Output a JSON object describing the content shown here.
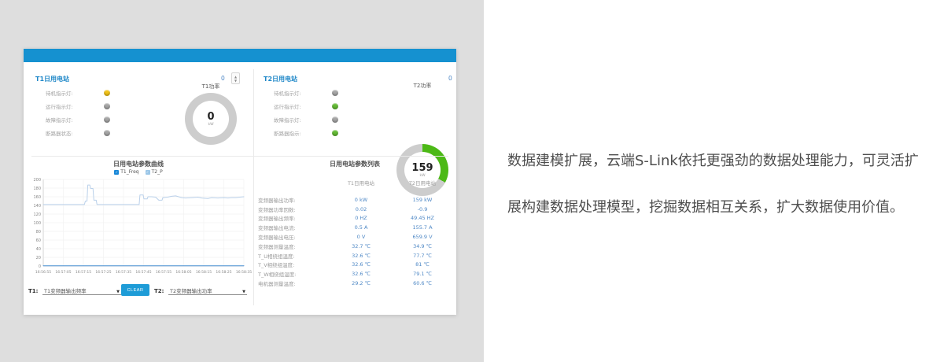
{
  "colors": {
    "page_left_bg": "#dedede",
    "topbar_blue": "#1591d0",
    "panel_title_blue": "#1e87c8",
    "value_blue": "#4d87c5",
    "gauge_green": "#4cb916",
    "gauge_track": "#cdcdcd",
    "indicator_yellow": "#f2c318",
    "indicator_green": "#64bb35",
    "indicator_gray": "#a6a6a6",
    "clear_button_blue": "#1e9cd7",
    "copy_text": "#4e4e4e"
  },
  "marketing": {
    "line1": "数据建模扩展，云端S-Link依托更强劲的数据处理能力，可灵活扩",
    "line2": "展构建数据处理模型，挖掘数据相互关系，扩大数据使用价值。"
  },
  "dashboard": {
    "stations": [
      {
        "title": "T1日用电站",
        "counter": "0",
        "gauge": {
          "label": "T1功率",
          "value": "0",
          "unit": "kW",
          "percent": 0,
          "color": "#4cb916",
          "track": "#cdcdcd"
        },
        "indicators": [
          {
            "label": "待机指示灯:",
            "color": "#f2c318"
          },
          {
            "label": "运行指示灯:",
            "color": "#a6a6a6"
          },
          {
            "label": "故障指示灯:",
            "color": "#a6a6a6"
          },
          {
            "label": "断路器状态:",
            "color": "#a6a6a6"
          }
        ]
      },
      {
        "title": "T2日用电站",
        "counter": "0",
        "gauge": {
          "label": "T2功率",
          "value": "159",
          "unit": "kW",
          "percent": 33,
          "color": "#4cb916",
          "track": "#cdcdcd"
        },
        "indicators": [
          {
            "label": "待机指示灯:",
            "color": "#a6a6a6"
          },
          {
            "label": "运行指示灯:",
            "color": "#64bb35"
          },
          {
            "label": "故障指示灯:",
            "color": "#a6a6a6"
          },
          {
            "label": "断路器指示:",
            "color": "#64bb35"
          }
        ]
      }
    ],
    "controls": {
      "t1_label": "T1:",
      "t1_value": "T1变频器输出频率",
      "clear_label": "CLEAR",
      "t2_label": "T2:",
      "t2_value": "T2变频器输出功率"
    },
    "table": {
      "title": "日用电站参数列表",
      "columns": [
        "T1日用电站",
        "T2日用电站"
      ],
      "rows": [
        {
          "label": "变频器输出功率:",
          "t1": "0 kW",
          "t2": "159 kW"
        },
        {
          "label": "变频器功率因数:",
          "t1": "0.02",
          "t2": "-0.9"
        },
        {
          "label": "变频器输出频率:",
          "t1": "0 HZ",
          "t2": "49.45 HZ"
        },
        {
          "label": "变频器输出电流:",
          "t1": "0.5 A",
          "t2": "155.7 A"
        },
        {
          "label": "变频器输出电压:",
          "t1": "0 V",
          "t2": "659.9 V"
        },
        {
          "label": "变频器测量温度:",
          "t1": "32.7 ℃",
          "t2": "34.9 ℃"
        },
        {
          "label": "T_U相绕组温度:",
          "t1": "32.6 ℃",
          "t2": "77.7 ℃"
        },
        {
          "label": "T_V相绕组温度:",
          "t1": "32.6 ℃",
          "t2": "81 ℃"
        },
        {
          "label": "T_W相绕组温度:",
          "t1": "32.6 ℃",
          "t2": "79.1 ℃"
        },
        {
          "label": "电机器测量温度:",
          "t1": "29.2 ℃",
          "t2": "60.6 ℃"
        }
      ]
    }
  },
  "chart_data": {
    "type": "line",
    "title": "日用电站参数曲线",
    "xlabel": "",
    "ylabel": "",
    "ylim": [
      0,
      200
    ],
    "y_tick_step": 20,
    "x_ticks": [
      "16:56:55",
      "16:57:05",
      "16:57:15",
      "16:57:25",
      "16:57:35",
      "16:57:45",
      "16:57:55",
      "16:58:05",
      "16:58:15",
      "16:58:25",
      "16:58:35"
    ],
    "grid": true,
    "legend_position": "top",
    "series": [
      {
        "name": "T1_Freq",
        "color": "#4a90d2",
        "swatch": "#1a88d8",
        "points": [
          [
            0,
            0.5
          ],
          [
            100,
            0.5
          ]
        ]
      },
      {
        "name": "T2_P",
        "color": "#b9d0ea",
        "swatch": "#9cc7e8",
        "points": [
          [
            0,
            142
          ],
          [
            20.5,
            142
          ],
          [
            21,
            150
          ],
          [
            21.8,
            150
          ],
          [
            22.2,
            187
          ],
          [
            23.2,
            187
          ],
          [
            23.6,
            179
          ],
          [
            24.8,
            179
          ],
          [
            25.2,
            152
          ],
          [
            26.4,
            152
          ],
          [
            26.8,
            142
          ],
          [
            47.8,
            142
          ],
          [
            48.2,
            164
          ],
          [
            49.8,
            164
          ],
          [
            50.2,
            155
          ],
          [
            51.8,
            155
          ],
          [
            52.2,
            160
          ],
          [
            54,
            160
          ],
          [
            56,
            159
          ],
          [
            57.6,
            152
          ],
          [
            59.2,
            152
          ],
          [
            59.6,
            158
          ],
          [
            62,
            159
          ],
          [
            64,
            161
          ],
          [
            66,
            162
          ],
          [
            67.5,
            160
          ],
          [
            69,
            158
          ],
          [
            71,
            157
          ],
          [
            74,
            158
          ],
          [
            77,
            159
          ],
          [
            79,
            157
          ],
          [
            82,
            156
          ],
          [
            84,
            158
          ],
          [
            87,
            157
          ],
          [
            90,
            158
          ],
          [
            92,
            157
          ],
          [
            94,
            158
          ],
          [
            96,
            158
          ],
          [
            98,
            159
          ],
          [
            100,
            160
          ]
        ]
      }
    ]
  }
}
